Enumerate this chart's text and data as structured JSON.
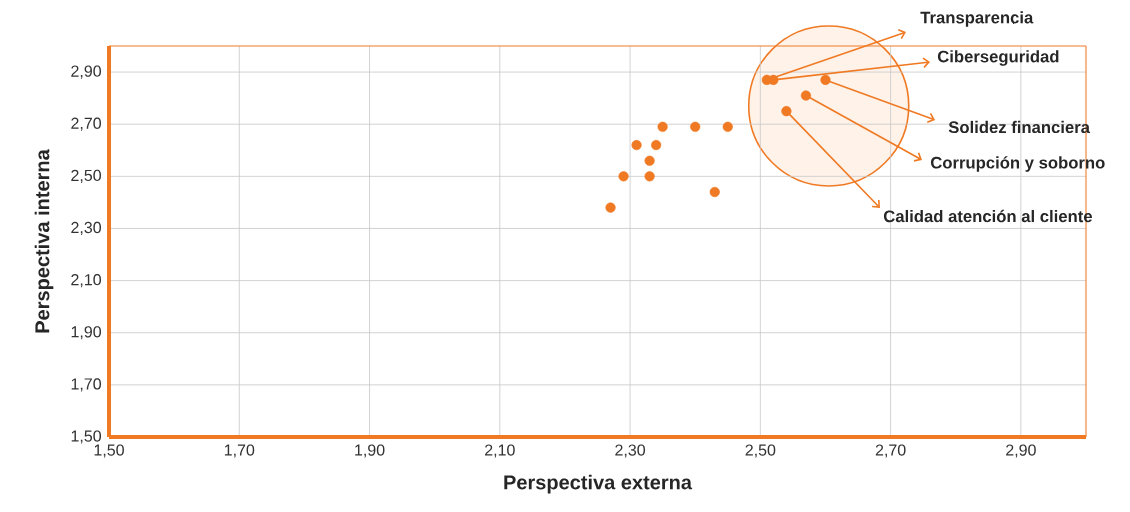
{
  "chart_data": {
    "type": "scatter",
    "xlabel": "Perspectiva externa",
    "ylabel": "Perspectiva interna",
    "series": [
      {
        "color": "#f07a24",
        "x": [
          2.27,
          2.29,
          2.31,
          2.33,
          2.33,
          2.34,
          2.35,
          2.4,
          2.45,
          2.43,
          2.51,
          2.52,
          2.6,
          2.57,
          2.54
        ],
        "values": [
          2.38,
          2.5,
          2.62,
          2.56,
          2.5,
          2.62,
          2.69,
          2.69,
          2.69,
          2.44,
          2.87,
          2.87,
          2.87,
          2.81,
          2.75
        ]
      }
    ],
    "marker": "circle",
    "grid": true,
    "xlim": [
      1.5,
      3.0
    ],
    "ylim": [
      1.5,
      3.0
    ],
    "xticks": [
      {
        "value": 1.5,
        "label": "1,50"
      },
      {
        "value": 1.7,
        "label": "1,70"
      },
      {
        "value": 1.9,
        "label": "1,90"
      },
      {
        "value": 2.1,
        "label": "2,10"
      },
      {
        "value": 2.3,
        "label": "2,30"
      },
      {
        "value": 2.5,
        "label": "2,50"
      },
      {
        "value": 2.7,
        "label": "2,70"
      },
      {
        "value": 2.9,
        "label": "2,90"
      }
    ],
    "yticks": [
      {
        "value": 1.5,
        "label": "1,50"
      },
      {
        "value": 1.7,
        "label": "1,70"
      },
      {
        "value": 1.9,
        "label": "1,90"
      },
      {
        "value": 2.1,
        "label": "2,10"
      },
      {
        "value": 2.3,
        "label": "2,30"
      },
      {
        "value": 2.5,
        "label": "2,50"
      },
      {
        "value": 2.7,
        "label": "2,70"
      },
      {
        "value": 2.9,
        "label": "2,90"
      }
    ],
    "annotations": [
      {
        "text": "Transparencia",
        "x": 2.51,
        "y": 2.87
      },
      {
        "text": "Ciberseguridad",
        "x": 2.52,
        "y": 2.87
      },
      {
        "text": "Solidez financiera",
        "x": 2.6,
        "y": 2.87
      },
      {
        "text": "Corrupción y soborno",
        "x": 2.57,
        "y": 2.81
      },
      {
        "text": "Calidad atención al cliente",
        "x": 2.54,
        "y": 2.75
      }
    ]
  }
}
